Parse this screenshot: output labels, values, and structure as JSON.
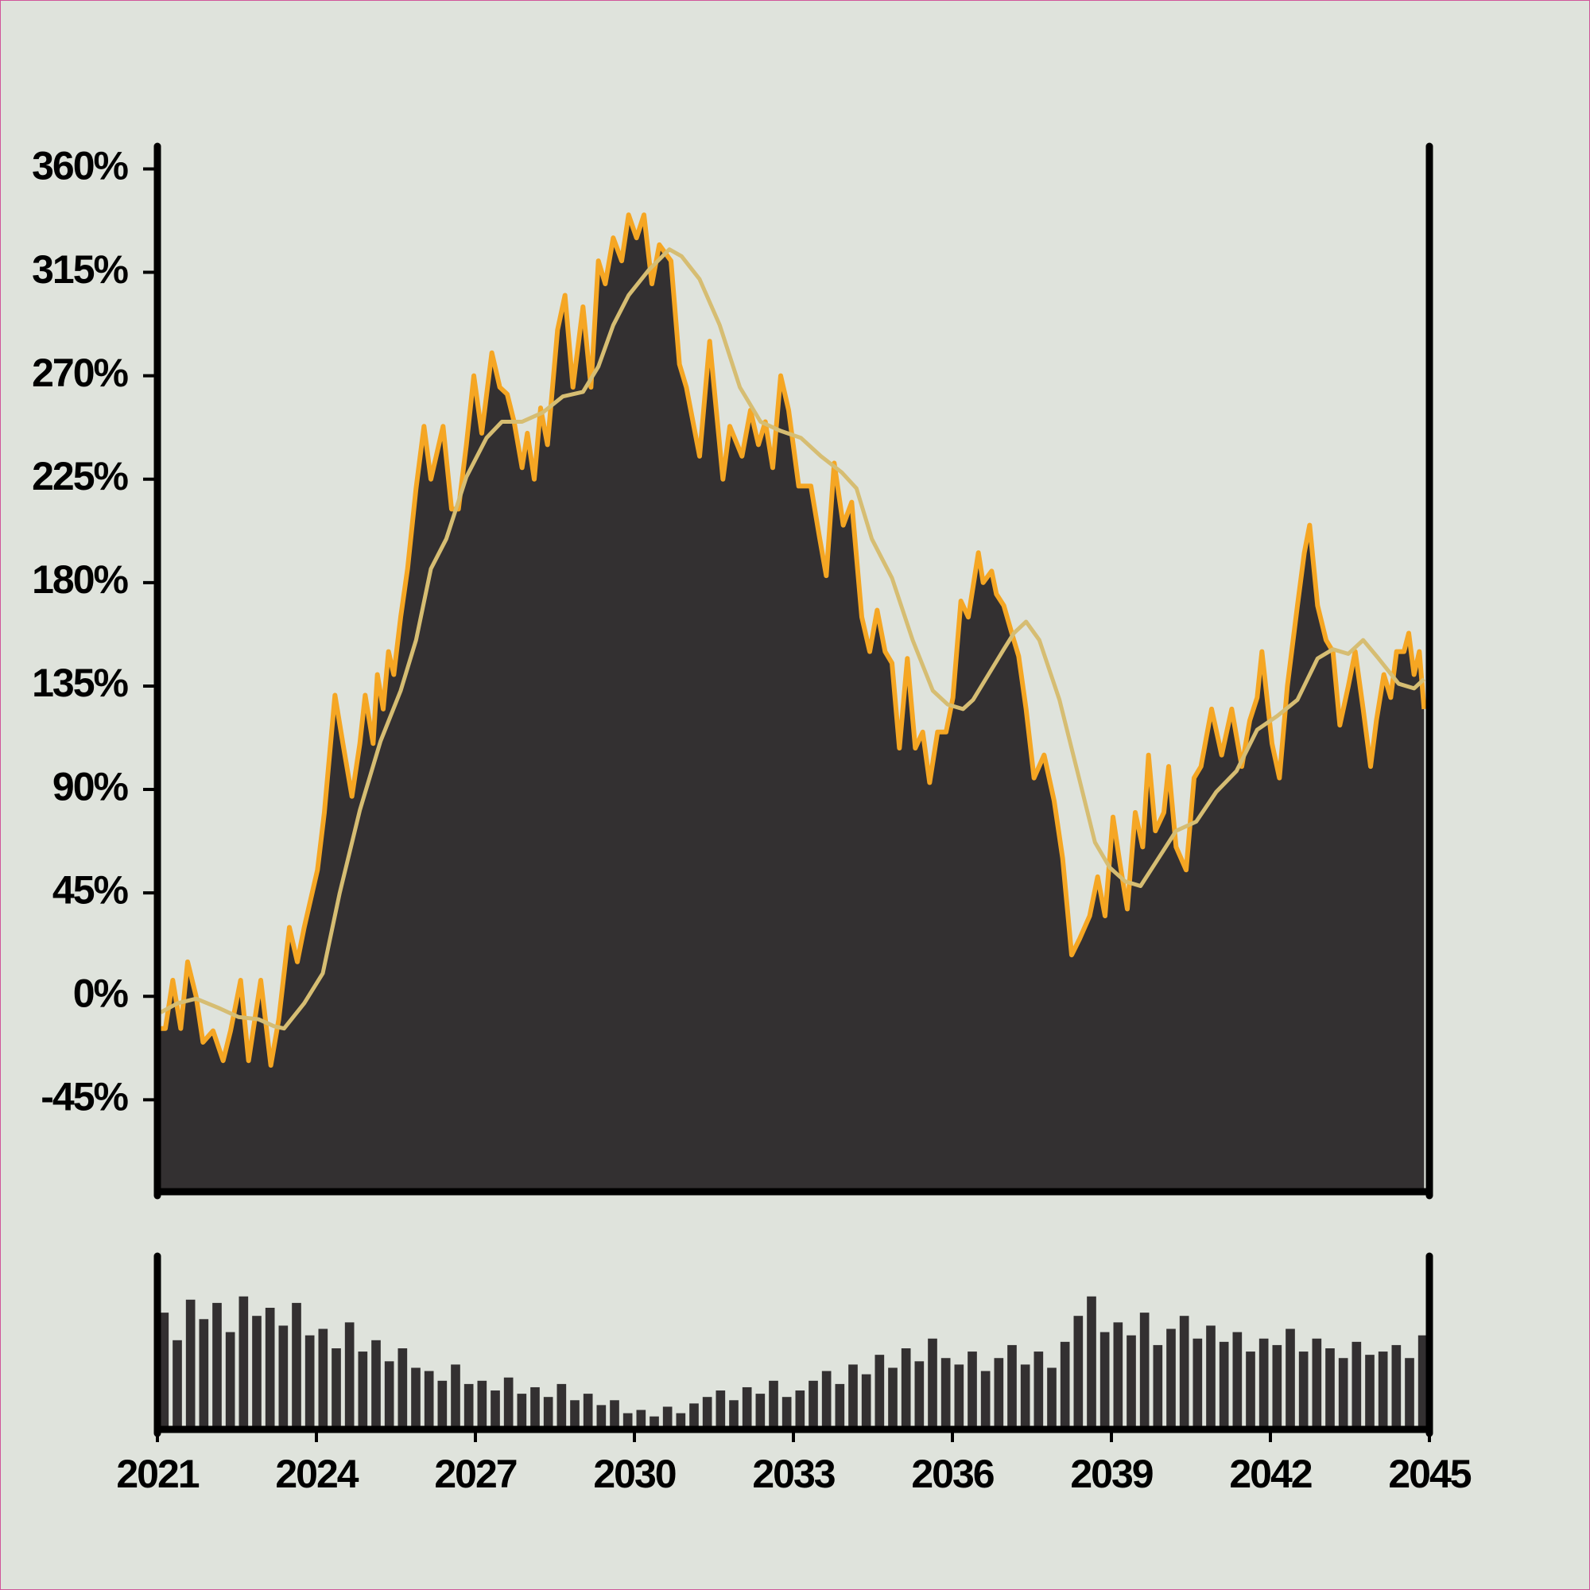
{
  "chart_data": [
    {
      "type": "area",
      "xlim": [
        2021,
        2045
      ],
      "ylim": [
        -85,
        365
      ],
      "yticks": [
        {
          "value": -45,
          "label": "-45%"
        },
        {
          "value": 0,
          "label": "0%"
        },
        {
          "value": 45,
          "label": "45%"
        },
        {
          "value": 90,
          "label": "90%"
        },
        {
          "value": 135,
          "label": "135%"
        },
        {
          "value": 180,
          "label": "180%"
        },
        {
          "value": 225,
          "label": "225%"
        },
        {
          "value": 270,
          "label": "270%"
        },
        {
          "value": 315,
          "label": "315%"
        },
        {
          "value": 360,
          "label": "360%"
        }
      ],
      "series": [
        {
          "color": "#f5a623",
          "fill": "#333031",
          "x": [
            2021.06,
            2021.15,
            2021.29,
            2021.44,
            2021.57,
            2021.73,
            2021.86,
            2022.05,
            2022.24,
            2022.38,
            2022.57,
            2022.72,
            2022.95,
            2023.14,
            2023.29,
            2023.49,
            2023.64,
            2023.77,
            2024.02,
            2024.15,
            2024.35,
            2024.5,
            2024.67,
            2024.82,
            2024.92,
            2025.07,
            2025.15,
            2025.26,
            2025.36,
            2025.46,
            2025.59,
            2025.72,
            2025.88,
            2026.03,
            2026.16,
            2026.39,
            2026.55,
            2026.68,
            2026.83,
            2026.97,
            2027.12,
            2027.31,
            2027.46,
            2027.6,
            2027.73,
            2027.88,
            2027.98,
            2028.11,
            2028.23,
            2028.36,
            2028.55,
            2028.69,
            2028.84,
            2029.03,
            2029.18,
            2029.32,
            2029.45,
            2029.6,
            2029.76,
            2029.89,
            2030.04,
            2030.18,
            2030.33,
            2030.47,
            2030.69,
            2030.85,
            2030.98,
            2031.23,
            2031.42,
            2031.67,
            2031.8,
            2032.03,
            2032.19,
            2032.34,
            2032.47,
            2032.61,
            2032.76,
            2032.91,
            2033.1,
            2033.33,
            2033.49,
            2033.62,
            2033.77,
            2033.94,
            2034.1,
            2034.29,
            2034.44,
            2034.58,
            2034.73,
            2034.86,
            2035,
            2035.15,
            2035.3,
            2035.44,
            2035.57,
            2035.72,
            2035.88,
            2036.01,
            2036.16,
            2036.3,
            2036.49,
            2036.58,
            2036.74,
            2036.83,
            2036.97,
            2037.12,
            2037.25,
            2037.39,
            2037.54,
            2037.73,
            2037.92,
            2038.08,
            2038.25,
            2038.4,
            2038.59,
            2038.74,
            2038.88,
            2039.03,
            2039.16,
            2039.3,
            2039.45,
            2039.59,
            2039.7,
            2039.83,
            2039.99,
            2040.08,
            2040.22,
            2040.41,
            2040.56,
            2040.69,
            2040.89,
            2041.08,
            2041.27,
            2041.46,
            2041.61,
            2041.75,
            2041.84,
            2042.03,
            2042.17,
            2042.32,
            2042.51,
            2042.64,
            2042.74,
            2042.89,
            2043.05,
            2043.18,
            2043.31,
            2043.47,
            2043.6,
            2043.75,
            2043.89,
            2044,
            2044.14,
            2044.27,
            2044.38,
            2044.52,
            2044.61,
            2044.71,
            2044.81,
            2044.9
          ],
          "values": [
            -14,
            -14,
            7,
            -14,
            15,
            0,
            -20,
            -15,
            -28,
            -15,
            7,
            -28,
            7,
            -30,
            -10,
            30,
            15,
            30,
            55,
            80,
            131,
            110,
            87,
            110,
            131,
            110,
            140,
            125,
            150,
            140,
            165,
            186,
            221,
            248,
            225,
            248,
            212,
            212,
            240,
            270,
            245,
            280,
            265,
            262,
            250,
            230,
            245,
            225,
            256,
            240,
            290,
            305,
            265,
            300,
            265,
            320,
            310,
            330,
            320,
            340,
            330,
            340,
            310,
            327,
            320,
            275,
            265,
            235,
            285,
            225,
            248,
            235,
            255,
            240,
            250,
            230,
            270,
            255,
            222,
            222,
            200,
            183,
            232,
            205,
            215,
            165,
            150,
            168,
            150,
            145,
            108,
            147,
            108,
            115,
            93,
            115,
            115,
            130,
            172,
            165,
            193,
            180,
            185,
            175,
            170,
            158,
            148,
            125,
            95,
            105,
            85,
            60,
            18,
            25,
            35,
            52,
            35,
            78,
            58,
            38,
            80,
            65,
            105,
            72,
            80,
            100,
            65,
            55,
            95,
            100,
            125,
            105,
            125,
            100,
            120,
            130,
            150,
            110,
            95,
            135,
            170,
            193,
            205,
            170,
            155,
            150,
            118,
            135,
            150,
            125,
            100,
            120,
            140,
            130,
            150,
            150,
            158,
            140,
            150,
            125
          ]
        },
        {
          "color": "#d6bd72",
          "x": [
            2021.06,
            2021.38,
            2021.73,
            2022.15,
            2022.53,
            2022.91,
            2023.2,
            2023.39,
            2023.77,
            2024.12,
            2024.44,
            2024.82,
            2025.21,
            2025.59,
            2025.88,
            2026.16,
            2026.45,
            2026.83,
            2027.21,
            2027.5,
            2027.88,
            2028.27,
            2028.65,
            2029.03,
            2029.32,
            2029.6,
            2029.89,
            2030.27,
            2030.66,
            2030.89,
            2031.23,
            2031.61,
            2031.99,
            2032.38,
            2032.76,
            2033.14,
            2033.52,
            2033.91,
            2034.19,
            2034.48,
            2034.86,
            2035.25,
            2035.63,
            2035.91,
            2036.2,
            2036.39,
            2036.68,
            2036.97,
            2037.16,
            2037.39,
            2037.64,
            2038.02,
            2038.4,
            2038.69,
            2038.97,
            2039.26,
            2039.55,
            2039.83,
            2040.22,
            2040.6,
            2040.98,
            2041.36,
            2041.75,
            2042.13,
            2042.51,
            2042.89,
            2043.18,
            2043.47,
            2043.75,
            2044.04,
            2044.42,
            2044.71,
            2044.9
          ],
          "values": [
            -7,
            -3,
            -1,
            -5,
            -9,
            -10,
            -13,
            -14,
            -3,
            10,
            45,
            81,
            111,
            133,
            155,
            186,
            199,
            226,
            243,
            250,
            250,
            254,
            261,
            263,
            274,
            292,
            305,
            316,
            325,
            322,
            312,
            292,
            265,
            250,
            246,
            243,
            235,
            228,
            221,
            199,
            182,
            155,
            133,
            127,
            125,
            129,
            140,
            151,
            158,
            163,
            155,
            129,
            94,
            67,
            56,
            50,
            48,
            58,
            72,
            76,
            89,
            98,
            116,
            122,
            129,
            147,
            151,
            149,
            155,
            147,
            136,
            134,
            138
          ]
        }
      ]
    },
    {
      "type": "bar",
      "color": "#333031",
      "xlim": [
        2021,
        2045
      ],
      "ylim": [
        0,
        100
      ],
      "xticks": [
        2021,
        2024,
        2027,
        2030,
        2033,
        2036,
        2039,
        2042,
        2045
      ],
      "x": [
        2021.125,
        2021.375,
        2021.625,
        2021.875,
        2022.125,
        2022.375,
        2022.625,
        2022.875,
        2023.125,
        2023.375,
        2023.625,
        2023.875,
        2024.125,
        2024.375,
        2024.625,
        2024.875,
        2025.125,
        2025.375,
        2025.625,
        2025.875,
        2026.125,
        2026.375,
        2026.625,
        2026.875,
        2027.125,
        2027.375,
        2027.625,
        2027.875,
        2028.125,
        2028.375,
        2028.625,
        2028.875,
        2029.125,
        2029.375,
        2029.625,
        2029.875,
        2030.125,
        2030.375,
        2030.625,
        2030.875,
        2031.125,
        2031.375,
        2031.625,
        2031.875,
        2032.125,
        2032.375,
        2032.625,
        2032.875,
        2033.125,
        2033.375,
        2033.625,
        2033.875,
        2034.125,
        2034.375,
        2034.625,
        2034.875,
        2035.125,
        2035.375,
        2035.625,
        2035.875,
        2036.125,
        2036.375,
        2036.625,
        2036.875,
        2037.125,
        2037.375,
        2037.625,
        2037.875,
        2038.125,
        2038.375,
        2038.625,
        2038.875,
        2039.125,
        2039.375,
        2039.625,
        2039.875,
        2040.125,
        2040.375,
        2040.625,
        2040.875,
        2041.125,
        2041.375,
        2041.625,
        2041.875,
        2042.125,
        2042.375,
        2042.625,
        2042.875,
        2043.125,
        2043.375,
        2043.625,
        2043.875,
        2044.125,
        2044.375,
        2044.625,
        2044.875
      ],
      "values": [
        72,
        55,
        80,
        68,
        78,
        60,
        82,
        70,
        75,
        64,
        78,
        58,
        62,
        50,
        66,
        48,
        55,
        42,
        50,
        38,
        36,
        30,
        40,
        28,
        30,
        24,
        32,
        22,
        26,
        20,
        28,
        18,
        22,
        15,
        18,
        10,
        12,
        8,
        14,
        10,
        16,
        20,
        24,
        18,
        26,
        22,
        30,
        20,
        24,
        30,
        36,
        28,
        40,
        34,
        46,
        38,
        50,
        42,
        56,
        44,
        40,
        48,
        36,
        44,
        52,
        40,
        48,
        38,
        54,
        70,
        82,
        60,
        66,
        58,
        72,
        52,
        62,
        70,
        56,
        64,
        54,
        60,
        48,
        56,
        52,
        62,
        48,
        56,
        50,
        44,
        54,
        46,
        48,
        52,
        44,
        58
      ]
    }
  ]
}
